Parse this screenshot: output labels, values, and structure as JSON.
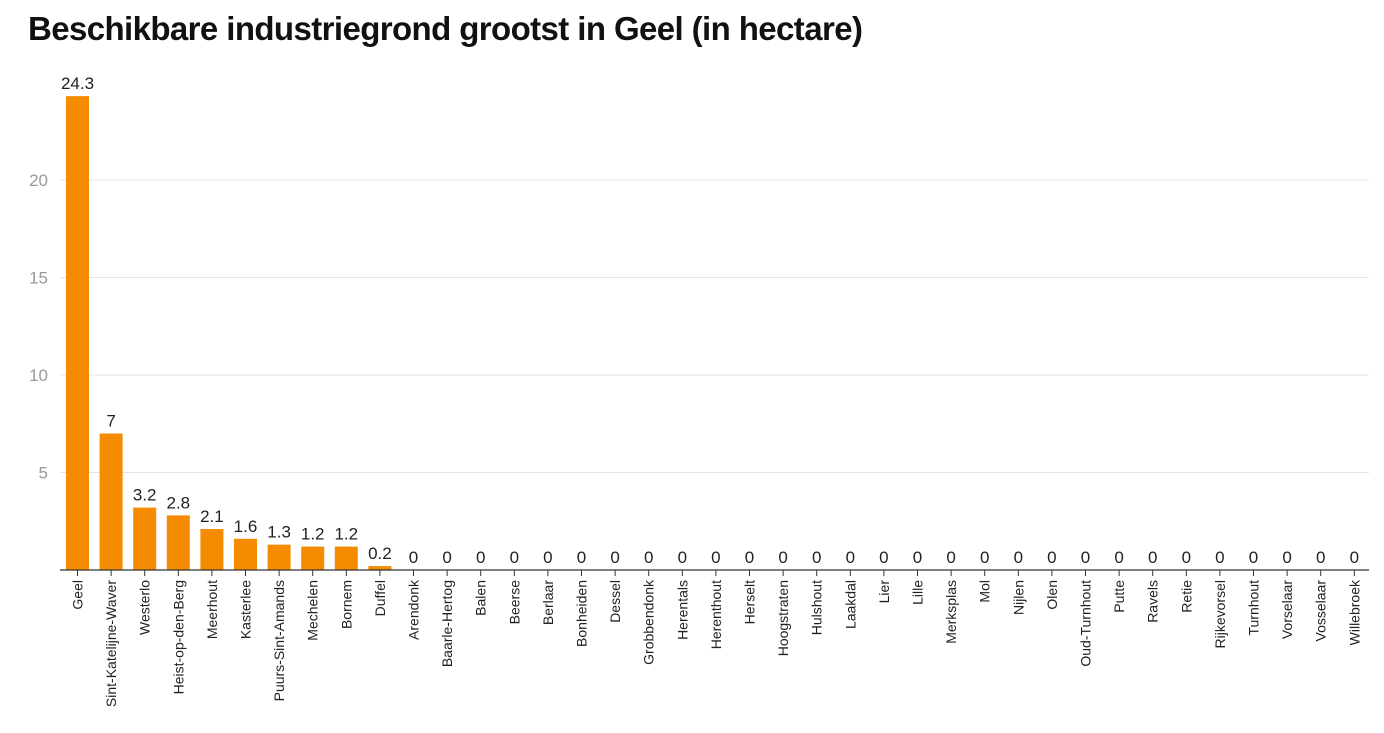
{
  "title": "Beschikbare industriegrond grootst in Geel (in hectare)",
  "chart_data": {
    "type": "bar",
    "title": "Beschikbare industriegrond grootst in Geel (in hectare)",
    "xlabel": "",
    "ylabel": "",
    "ylim": [
      0,
      25
    ],
    "yticks": [
      5,
      10,
      15,
      20
    ],
    "grid": true,
    "bar_color": "#f58b00",
    "categories": [
      "Geel",
      "Sint-Katelijne-Waver",
      "Westerlo",
      "Heist-op-den-Berg",
      "Meerhout",
      "Kasterlee",
      "Puurs-Sint-Amands",
      "Mechelen",
      "Bornem",
      "Duffel",
      "Arendonk",
      "Baarle-Hertog",
      "Balen",
      "Beerse",
      "Berlaar",
      "Bonheiden",
      "Dessel",
      "Grobbendonk",
      "Herentals",
      "Herenthout",
      "Herselt",
      "Hoogstraten",
      "Hulshout",
      "Laakdal",
      "Lier",
      "Lille",
      "Merksplas",
      "Mol",
      "Nijlen",
      "Olen",
      "Oud-Turnhout",
      "Putte",
      "Ravels",
      "Retie",
      "Rijkevorsel",
      "Turnhout",
      "Vorselaar",
      "Vosselaar",
      "Willebroek"
    ],
    "values": [
      24.3,
      7,
      3.2,
      2.8,
      2.1,
      1.6,
      1.3,
      1.2,
      1.2,
      0.2,
      0,
      0,
      0,
      0,
      0,
      0,
      0,
      0,
      0,
      0,
      0,
      0,
      0,
      0,
      0,
      0,
      0,
      0,
      0,
      0,
      0,
      0,
      0,
      0,
      0,
      0,
      0,
      0,
      0
    ],
    "data_labels": [
      "24.3",
      "7",
      "3.2",
      "2.8",
      "2.1",
      "1.6",
      "1.3",
      "1.2",
      "1.2",
      "0.2",
      "0",
      "0",
      "0",
      "0",
      "0",
      "0",
      "0",
      "0",
      "0",
      "0",
      "0",
      "0",
      "0",
      "0",
      "0",
      "0",
      "0",
      "0",
      "0",
      "0",
      "0",
      "0",
      "0",
      "0",
      "0",
      "0",
      "0",
      "0",
      "0"
    ]
  }
}
